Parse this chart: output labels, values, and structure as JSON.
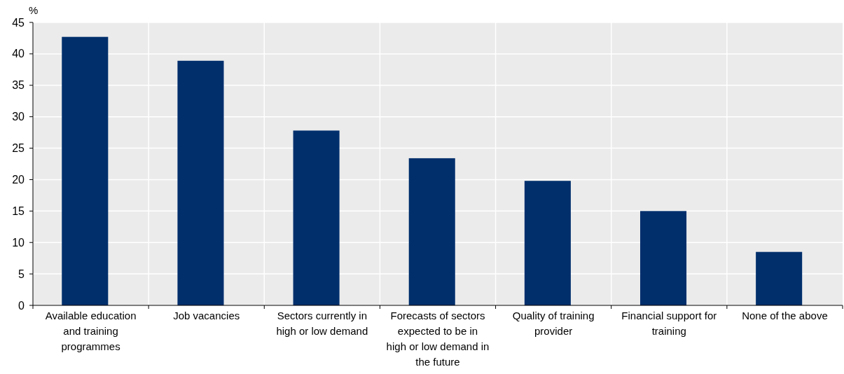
{
  "chart_data": {
    "type": "bar",
    "ylabel": "%",
    "categories": [
      "Available education and training programmes",
      "Job vacancies",
      "Sectors currently in high or low demand",
      "Forecasts of sectors expected to be in high or low demand in the future",
      "Quality of training provider",
      "Financial support for training",
      "None of the above"
    ],
    "values": [
      42.7,
      38.9,
      27.8,
      23.4,
      19.8,
      15.0,
      8.5
    ],
    "color": "#002f6c",
    "ylim": [
      0,
      45
    ],
    "yticks": [
      0,
      5,
      10,
      15,
      20,
      25,
      30,
      35,
      40,
      45
    ],
    "grid": true
  }
}
